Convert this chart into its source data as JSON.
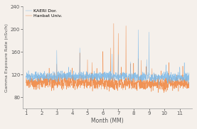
{
  "title": "",
  "xlabel": "Month (MM)",
  "ylabel": "Gamma Exposure Rate (nSv/h)",
  "xlim": [
    0.8,
    11.8
  ],
  "ylim": [
    60,
    240
  ],
  "yticks": [
    80,
    120,
    160,
    200,
    240
  ],
  "xticks": [
    1,
    2,
    3,
    4,
    5,
    6,
    7,
    8,
    9,
    10,
    11
  ],
  "legend": [
    "KAERI Dor.",
    "Hanbat Univ."
  ],
  "line1_color": "#7ab8e8",
  "line2_color": "#f0823a",
  "background_color": "#f5f0eb",
  "seed": 12345,
  "n_points": 1500
}
